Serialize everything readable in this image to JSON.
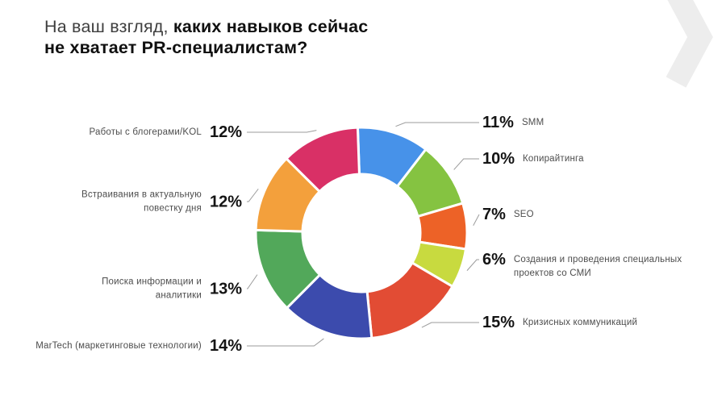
{
  "header": {
    "title_regular": "На ваш взгляд, ",
    "title_bold_line1": "каких навыков сейчас",
    "title_bold_line2": "не хватает PR-специалистам?"
  },
  "decor": {
    "chevron_color": "#ededed"
  },
  "chart_data": {
    "type": "pie",
    "subtype": "donut",
    "title": "На ваш взгляд, каких навыков сейчас не хватает PR-специалистам?",
    "unit": "%",
    "direction": "clockwise",
    "start_angle_deg": -2,
    "legend_position": "callouts",
    "slices": [
      {
        "label": "SMM",
        "value": 11,
        "color": "#4792e9",
        "side": "right"
      },
      {
        "label": "Копирайтинга",
        "value": 10,
        "color": "#85c341",
        "side": "right"
      },
      {
        "label": "SEO",
        "value": 7,
        "color": "#ed6227",
        "side": "right"
      },
      {
        "label": "Создания и проведения специальных проектов со СМИ",
        "value": 6,
        "color": "#c8da3f",
        "side": "right"
      },
      {
        "label": "Кризисных коммуникаций",
        "value": 15,
        "color": "#e24c34",
        "side": "right"
      },
      {
        "label": "MarTech (маркетинговые технологии)",
        "value": 14,
        "color": "#3c4bad",
        "side": "left"
      },
      {
        "label": "Поиска информации и аналитики",
        "value": 13,
        "color": "#52a85a",
        "side": "left"
      },
      {
        "label": "Встраивания в актуальную повестку дня",
        "value": 12,
        "color": "#f3a03c",
        "side": "left"
      },
      {
        "label": "Работы с блогерами/KOL",
        "value": 12,
        "color": "#d93066",
        "side": "left"
      }
    ]
  }
}
